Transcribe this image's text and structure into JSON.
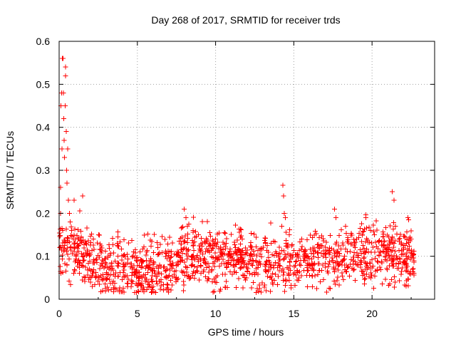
{
  "chart_data": {
    "type": "scatter",
    "title": "Day 268 of 2017, SRMTID for receiver trds",
    "xlabel": "GPS time / hours",
    "ylabel": "SRMTID / TECUs",
    "xlim": [
      0,
      24
    ],
    "ylim": [
      0,
      0.6
    ],
    "xticks": [
      0,
      5,
      10,
      15,
      20
    ],
    "xtick_labels": [
      "0",
      "5",
      "10",
      "15",
      "20"
    ],
    "yticks": [
      0,
      0.1,
      0.2,
      0.3,
      0.4,
      0.5,
      0.6
    ],
    "ytick_labels": [
      "0",
      "0.1",
      "0.2",
      "0.3",
      "0.4",
      "0.5",
      "0.6"
    ],
    "grid": true,
    "marker": "plus",
    "color": "#ff0000",
    "series": [
      {
        "name": "SRMTID",
        "points": [
          [
            0.05,
            0.12
          ],
          [
            0.08,
            0.2
          ],
          [
            0.1,
            0.26
          ],
          [
            0.12,
            0.45
          ],
          [
            0.15,
            0.48
          ],
          [
            0.18,
            0.35
          ],
          [
            0.2,
            0.56
          ],
          [
            0.22,
            0.16
          ],
          [
            0.25,
            0.56
          ],
          [
            0.28,
            0.48
          ],
          [
            0.3,
            0.42
          ],
          [
            0.32,
            0.37
          ],
          [
            0.35,
            0.33
          ],
          [
            0.38,
            0.45
          ],
          [
            0.4,
            0.52
          ],
          [
            0.42,
            0.54
          ],
          [
            0.45,
            0.39
          ],
          [
            0.48,
            0.3
          ],
          [
            0.5,
            0.27
          ],
          [
            0.55,
            0.35
          ],
          [
            0.6,
            0.23
          ],
          [
            0.65,
            0.2
          ],
          [
            0.7,
            0.18
          ],
          [
            0.8,
            0.16
          ],
          [
            0.9,
            0.14
          ],
          [
            0.95,
            0.23
          ],
          [
            1.0,
            0.12
          ],
          [
            1.1,
            0.1
          ],
          [
            1.2,
            0.14
          ],
          [
            1.5,
            0.24
          ],
          [
            1.7,
            0.13
          ],
          [
            8.0,
            0.21
          ],
          [
            8.1,
            0.19
          ],
          [
            8.2,
            0.17
          ],
          [
            8.9,
            0.15
          ],
          [
            14.3,
            0.265
          ],
          [
            14.35,
            0.24
          ],
          [
            14.4,
            0.2
          ],
          [
            14.45,
            0.19
          ],
          [
            14.7,
            0.15
          ],
          [
            17.6,
            0.21
          ],
          [
            17.7,
            0.19
          ],
          [
            18.3,
            0.17
          ],
          [
            19.6,
            0.19
          ],
          [
            19.9,
            0.16
          ],
          [
            21.3,
            0.25
          ],
          [
            21.4,
            0.23
          ],
          [
            21.5,
            0.17
          ],
          [
            22.3,
            0.19
          ],
          [
            22.5,
            0.14
          ]
        ],
        "baseline": [
          [
            0,
            0.12
          ],
          [
            1,
            0.11
          ],
          [
            2,
            0.09
          ],
          [
            3,
            0.075
          ],
          [
            4,
            0.065
          ],
          [
            5,
            0.06
          ],
          [
            6,
            0.07
          ],
          [
            7,
            0.08
          ],
          [
            8,
            0.1
          ],
          [
            9,
            0.11
          ],
          [
            10,
            0.1
          ],
          [
            11,
            0.095
          ],
          [
            12,
            0.09
          ],
          [
            13,
            0.085
          ],
          [
            14,
            0.08
          ],
          [
            15,
            0.085
          ],
          [
            16,
            0.09
          ],
          [
            17,
            0.095
          ],
          [
            18,
            0.1
          ],
          [
            19,
            0.105
          ],
          [
            20,
            0.11
          ],
          [
            21,
            0.11
          ],
          [
            22,
            0.095
          ],
          [
            22.7,
            0.09
          ]
        ],
        "spread": 0.035,
        "density_per_hour": 65
      }
    ]
  }
}
